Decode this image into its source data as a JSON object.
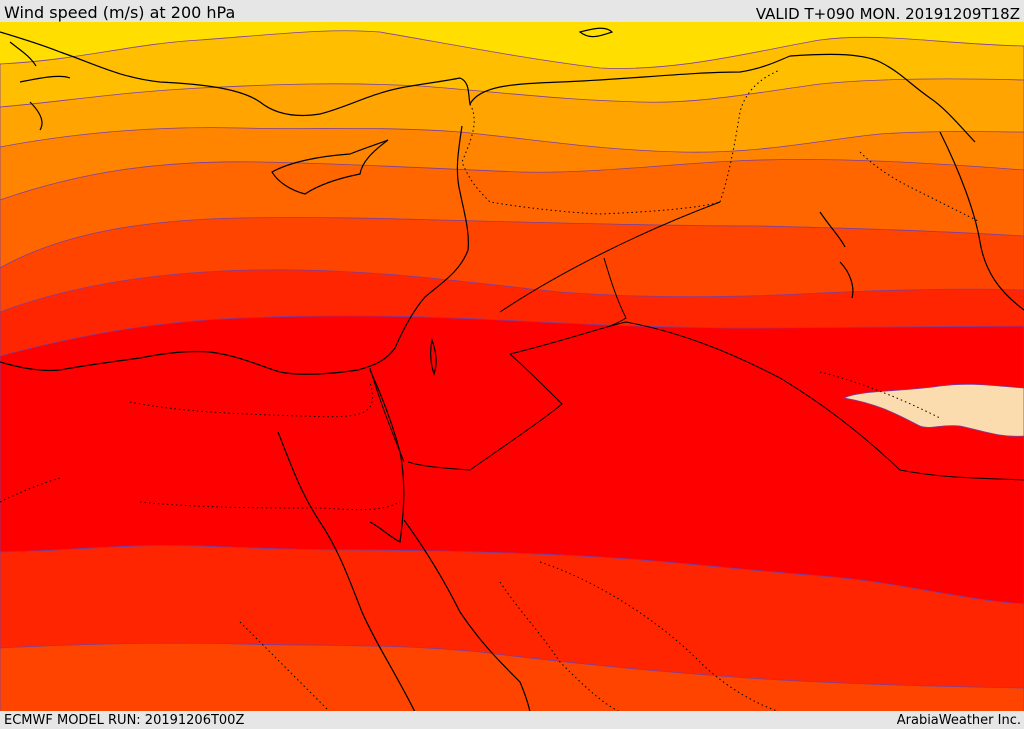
{
  "header": {
    "title": "Wind speed (m/s) at 200 hPa",
    "valid": "VALID T+090 MON. 20191209T18Z"
  },
  "footer": {
    "model_run": "ECMWF MODEL RUN: 20191206T00Z",
    "credit": "ArabiaWeather Inc."
  },
  "colors": {
    "band_yellow": "#ffde00",
    "band_gold": "#ffbe00",
    "band_amber": "#ffa400",
    "band_orange": "#ff8500",
    "band_orange_red": "#ff6600",
    "band_red_orange": "#ff4400",
    "band_red": "#ff2500",
    "band_core": "#ff0000",
    "jet_max": "#fbdcae",
    "contour": "#7a3fa0",
    "coast": "#000000"
  }
}
